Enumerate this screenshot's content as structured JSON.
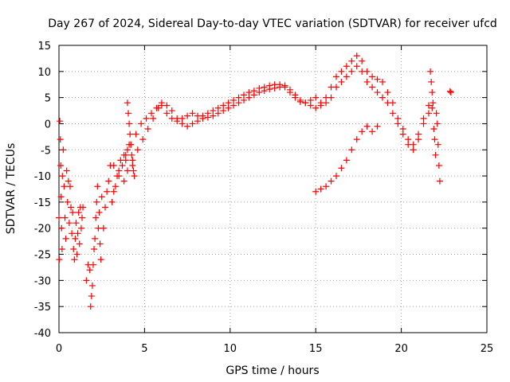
{
  "chart_data": {
    "type": "scatter",
    "title": "Day 267 of 2024, Sidereal Day-to-day VTEC variation (SDTVAR) for receiver ufcd",
    "xlabel": "GPS time / hours",
    "ylabel": "SDTVAR / TECUs",
    "xlim": [
      0,
      25
    ],
    "ylim": [
      -40,
      15
    ],
    "xticks": [
      0,
      5,
      10,
      15,
      20,
      25
    ],
    "yticks": [
      -40,
      -35,
      -30,
      -25,
      -20,
      -15,
      -10,
      -5,
      0,
      5,
      10,
      15
    ],
    "grid": true,
    "marker": "+",
    "color": "#ff0000",
    "series": [
      {
        "name": "early-scatter-a",
        "points": [
          [
            0.0,
            -18
          ],
          [
            0.02,
            -26
          ],
          [
            0.05,
            0.5
          ],
          [
            0.08,
            -3
          ],
          [
            0.1,
            -8
          ],
          [
            0.12,
            -14
          ],
          [
            0.15,
            -20
          ],
          [
            0.18,
            -24
          ],
          [
            0.2,
            -10
          ],
          [
            0.25,
            -5
          ],
          [
            0.3,
            -12
          ],
          [
            0.35,
            -18
          ],
          [
            0.4,
            -22
          ],
          [
            0.45,
            -9
          ],
          [
            0.5,
            -15
          ],
          [
            0.55,
            -11
          ],
          [
            0.6,
            -19
          ],
          [
            0.65,
            -12
          ],
          [
            0.7,
            -16
          ],
          [
            0.75,
            -21
          ],
          [
            0.8,
            -17
          ],
          [
            0.85,
            -24
          ],
          [
            0.9,
            -26
          ],
          [
            0.95,
            -22
          ],
          [
            1.0,
            -19
          ],
          [
            1.05,
            -25
          ],
          [
            1.1,
            -21
          ],
          [
            1.15,
            -17
          ],
          [
            1.2,
            -23
          ],
          [
            1.25,
            -16
          ],
          [
            1.3,
            -20
          ],
          [
            1.35,
            -18
          ],
          [
            1.4,
            -16
          ]
        ]
      },
      {
        "name": "early-scatter-b",
        "points": [
          [
            1.6,
            -30
          ],
          [
            1.7,
            -27
          ],
          [
            1.8,
            -28
          ],
          [
            1.85,
            -35
          ],
          [
            1.9,
            -33
          ],
          [
            1.95,
            -31
          ],
          [
            2.0,
            -27
          ],
          [
            2.05,
            -24
          ],
          [
            2.1,
            -22
          ],
          [
            2.15,
            -18
          ],
          [
            2.2,
            -15
          ],
          [
            2.25,
            -12
          ],
          [
            2.3,
            -20
          ],
          [
            2.35,
            -17
          ],
          [
            2.4,
            -23
          ],
          [
            2.45,
            -26
          ],
          [
            2.5,
            -14
          ],
          [
            2.6,
            -20
          ],
          [
            2.7,
            -16
          ],
          [
            2.8,
            -13
          ],
          [
            2.9,
            -11
          ],
          [
            3.0,
            -8
          ],
          [
            3.1,
            -15
          ],
          [
            3.2,
            -13
          ],
          [
            3.3,
            -12
          ],
          [
            3.4,
            -10
          ],
          [
            3.5,
            -9
          ],
          [
            3.6,
            -7
          ],
          [
            3.7,
            -8
          ],
          [
            3.8,
            -6
          ],
          [
            3.9,
            -7
          ],
          [
            4.0,
            -5
          ],
          [
            4.1,
            -4
          ]
        ]
      },
      {
        "name": "spike-near-4h",
        "points": [
          [
            4.0,
            4
          ],
          [
            4.05,
            2
          ],
          [
            4.1,
            0
          ],
          [
            4.15,
            -2
          ],
          [
            4.2,
            -4
          ],
          [
            4.25,
            -6
          ],
          [
            4.3,
            -8
          ],
          [
            4.35,
            -9
          ],
          [
            4.4,
            -10
          ]
        ]
      },
      {
        "name": "main-arc-lower",
        "points": [
          [
            3.2,
            -8
          ],
          [
            3.5,
            -10
          ],
          [
            3.8,
            -11
          ],
          [
            4.0,
            -9
          ],
          [
            4.3,
            -7
          ],
          [
            4.6,
            -5
          ],
          [
            4.9,
            -3
          ],
          [
            5.2,
            -1
          ],
          [
            5.5,
            1
          ],
          [
            5.8,
            3
          ],
          [
            6.0,
            4
          ],
          [
            6.3,
            3.5
          ],
          [
            6.6,
            2.5
          ],
          [
            6.9,
            1
          ],
          [
            7.2,
            0
          ],
          [
            7.5,
            -0.5
          ],
          [
            7.8,
            0
          ],
          [
            8.1,
            0.5
          ],
          [
            8.4,
            1
          ],
          [
            8.7,
            1.2
          ],
          [
            9.0,
            1.5
          ],
          [
            9.3,
            2
          ],
          [
            9.6,
            2.5
          ],
          [
            9.9,
            3
          ],
          [
            10.2,
            3.5
          ],
          [
            10.5,
            4
          ],
          [
            10.8,
            4.5
          ],
          [
            11.1,
            5
          ],
          [
            11.4,
            5.5
          ],
          [
            11.7,
            6
          ],
          [
            12.0,
            6.3
          ],
          [
            12.3,
            6.6
          ],
          [
            12.6,
            6.8
          ],
          [
            12.9,
            7
          ],
          [
            13.2,
            7
          ],
          [
            13.5,
            6.5
          ],
          [
            13.8,
            5.5
          ],
          [
            14.1,
            4.5
          ],
          [
            14.4,
            4
          ],
          [
            14.7,
            3.5
          ],
          [
            15.0,
            3
          ],
          [
            15.3,
            3.5
          ],
          [
            15.6,
            4
          ],
          [
            15.9,
            5
          ],
          [
            16.2,
            7
          ],
          [
            16.5,
            8
          ],
          [
            16.8,
            9
          ],
          [
            17.1,
            10
          ],
          [
            17.4,
            11
          ],
          [
            17.7,
            10
          ],
          [
            18.0,
            8
          ],
          [
            18.3,
            7
          ],
          [
            18.6,
            6
          ],
          [
            18.9,
            5
          ],
          [
            19.2,
            4
          ],
          [
            19.5,
            2
          ],
          [
            19.8,
            0
          ],
          [
            20.1,
            -2
          ],
          [
            20.4,
            -4
          ],
          [
            20.7,
            -5
          ],
          [
            21.0,
            -3
          ],
          [
            21.3,
            0
          ],
          [
            21.6,
            2
          ],
          [
            21.8,
            3
          ]
        ]
      },
      {
        "name": "main-arc-upper",
        "points": [
          [
            3.9,
            -6
          ],
          [
            4.2,
            -4
          ],
          [
            4.5,
            -2
          ],
          [
            4.8,
            0
          ],
          [
            5.1,
            1
          ],
          [
            5.4,
            2
          ],
          [
            5.7,
            3
          ],
          [
            6.0,
            3.5
          ],
          [
            6.3,
            2
          ],
          [
            6.6,
            1
          ],
          [
            6.9,
            0.5
          ],
          [
            7.2,
            1
          ],
          [
            7.5,
            1.5
          ],
          [
            7.8,
            2
          ],
          [
            8.1,
            1.5
          ],
          [
            8.4,
            1.5
          ],
          [
            8.7,
            2
          ],
          [
            9.0,
            2.5
          ],
          [
            9.3,
            3
          ],
          [
            9.6,
            3.5
          ],
          [
            9.9,
            4
          ],
          [
            10.2,
            4.5
          ],
          [
            10.5,
            5
          ],
          [
            10.8,
            5.5
          ],
          [
            11.1,
            6
          ],
          [
            11.4,
            6.3
          ],
          [
            11.7,
            6.8
          ],
          [
            12.0,
            7
          ],
          [
            12.3,
            7.3
          ],
          [
            12.6,
            7.5
          ],
          [
            12.9,
            7.5
          ],
          [
            13.2,
            7.3
          ],
          [
            13.5,
            6
          ],
          [
            13.8,
            5
          ],
          [
            14.1,
            4.2
          ],
          [
            14.4,
            4
          ],
          [
            14.7,
            4.5
          ],
          [
            15.0,
            5
          ],
          [
            15.3,
            4
          ],
          [
            15.6,
            5
          ],
          [
            15.9,
            7
          ],
          [
            16.2,
            9
          ],
          [
            16.5,
            10
          ],
          [
            16.8,
            11
          ],
          [
            17.1,
            12
          ],
          [
            17.4,
            13
          ],
          [
            17.7,
            12
          ],
          [
            18.0,
            10
          ],
          [
            18.3,
            9
          ],
          [
            18.6,
            8.5
          ],
          [
            18.9,
            8
          ],
          [
            19.2,
            6
          ],
          [
            19.5,
            4
          ],
          [
            19.8,
            1
          ],
          [
            20.1,
            -1
          ],
          [
            20.4,
            -3
          ],
          [
            20.7,
            -4
          ],
          [
            21.0,
            -2
          ],
          [
            21.3,
            1
          ],
          [
            21.6,
            3.5
          ]
        ]
      },
      {
        "name": "evening-branch",
        "points": [
          [
            15.0,
            -13
          ],
          [
            15.3,
            -12.5
          ],
          [
            15.6,
            -12
          ],
          [
            15.9,
            -11
          ],
          [
            16.2,
            -10
          ],
          [
            16.5,
            -8.5
          ],
          [
            16.8,
            -7
          ],
          [
            17.1,
            -5
          ],
          [
            17.4,
            -3
          ],
          [
            17.7,
            -1.5
          ],
          [
            18.0,
            -0.5
          ],
          [
            18.3,
            -1.5
          ],
          [
            18.6,
            -0.5
          ]
        ]
      },
      {
        "name": "post-21h-scatter",
        "points": [
          [
            21.7,
            10
          ],
          [
            21.75,
            8
          ],
          [
            21.8,
            6
          ],
          [
            21.85,
            4
          ],
          [
            21.9,
            -1
          ],
          [
            21.95,
            -3
          ],
          [
            22.0,
            -6
          ],
          [
            22.05,
            2
          ],
          [
            22.1,
            0
          ],
          [
            22.15,
            -4
          ],
          [
            22.2,
            -8
          ],
          [
            22.25,
            -11
          ],
          [
            22.85,
            6.2
          ],
          [
            22.9,
            6.0
          ]
        ]
      }
    ]
  }
}
